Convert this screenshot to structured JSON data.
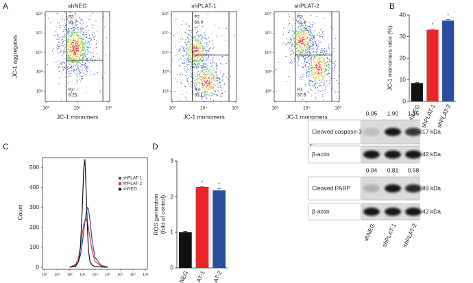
{
  "chart_data": [
    {
      "type": "flow",
      "panel": "A",
      "title": "shNEG",
      "xlabel": "JC-1 monomers",
      "ylabel": "JC-1 aggregates",
      "xscale": "log",
      "yscale": "log",
      "xlim": [
        90,
        1200000
      ],
      "ylim": [
        30,
        1300000
      ],
      "xticks": [
        {
          "value": 100,
          "label": "10²"
        },
        {
          "value": 10000,
          "label": "10⁴"
        },
        {
          "value": 1000000,
          "label": "10⁶"
        }
      ],
      "yticks": [
        {
          "value": 100,
          "label": "10²"
        },
        {
          "value": 1000,
          "label": "10³"
        },
        {
          "value": 10000,
          "label": "10⁴"
        },
        {
          "value": 100000,
          "label": "10⁵"
        },
        {
          "value": 1000000,
          "label": "10⁶"
        }
      ],
      "gates": {
        "x": [
          2000,
          440000
        ],
        "y": 4000
      },
      "regions": [
        {
          "name": "P2",
          "value": 91.7
        },
        {
          "name": "P3",
          "value": 8.25
        }
      ]
    },
    {
      "type": "flow",
      "title": "shPLAT-1",
      "xlabel": "JC-1 monomers",
      "xscale": "log",
      "yscale": "log",
      "xlim": [
        90,
        1200000
      ],
      "ylim": [
        30,
        1300000
      ],
      "xticks": [
        {
          "value": 100,
          "label": "10²"
        },
        {
          "value": 10000,
          "label": "10⁴"
        },
        {
          "value": 1000000,
          "label": "10⁶"
        }
      ],
      "yticks": [
        {
          "value": 100,
          "label": "10²"
        },
        {
          "value": 1000,
          "label": "10³"
        },
        {
          "value": 10000,
          "label": "10⁴"
        },
        {
          "value": 100000,
          "label": "10⁵"
        },
        {
          "value": 1000000,
          "label": "10⁶"
        }
      ],
      "gates": {
        "x": [
          1900,
          400000
        ],
        "y": 7600
      },
      "regions": [
        {
          "name": "P2",
          "value": 66.9
        },
        {
          "name": "P3",
          "value": 33.1
        }
      ]
    },
    {
      "type": "flow",
      "title": "shPLAT-2",
      "xlabel": "JC-1 monomers",
      "xscale": "log",
      "yscale": "log",
      "xlim": [
        90,
        1200000
      ],
      "ylim": [
        30,
        1300000
      ],
      "xticks": [
        {
          "value": 100,
          "label": "10²"
        },
        {
          "value": 10000,
          "label": "10⁴"
        },
        {
          "value": 1000000,
          "label": "10⁶"
        }
      ],
      "yticks": [
        {
          "value": 100,
          "label": "10²"
        },
        {
          "value": 1000,
          "label": "10³"
        },
        {
          "value": 10000,
          "label": "10⁴"
        },
        {
          "value": 100000,
          "label": "10⁵"
        },
        {
          "value": 1000000,
          "label": "10⁶"
        }
      ],
      "gates": {
        "x": [
          1900,
          400000
        ],
        "y": 7600
      },
      "regions": [
        {
          "name": "P2",
          "value": 62.3
        },
        {
          "name": "P3",
          "value": 37.6
        }
      ]
    },
    {
      "type": "bar",
      "panel": "B",
      "ylabel": "JC-1 monomers ratio (%)",
      "categories": [
        "shNEG",
        "shPLAT-1",
        "shPLAT-2"
      ],
      "values": [
        8.5,
        33.2,
        37.5
      ],
      "errors": [
        0.3,
        0.4,
        0.4
      ],
      "colors": [
        "#111111",
        "#e8262a",
        "#2a4fa0"
      ],
      "significance": [
        null,
        "*",
        "*"
      ],
      "ylim": [
        0,
        40
      ],
      "yticks": [
        0,
        10,
        20,
        30,
        40
      ]
    },
    {
      "type": "line",
      "panel": "C",
      "ylabel": "Count",
      "xscale": "log",
      "x": [
        100,
        300,
        500,
        700,
        1000,
        1300,
        1600,
        2000,
        2500,
        3000,
        4000,
        6000,
        10000,
        30000,
        100000
      ],
      "series": [
        {
          "name": "shPLAT-1",
          "color": "#2e4a9e",
          "values": [
            0,
            10,
            30,
            60,
            120,
            180,
            230,
            270,
            300,
            295,
            240,
            130,
            50,
            10,
            0
          ]
        },
        {
          "name": "shPLAT-2",
          "color": "#e23a3a",
          "values": [
            0,
            15,
            50,
            100,
            170,
            215,
            235,
            240,
            225,
            200,
            150,
            80,
            30,
            6,
            0
          ]
        },
        {
          "name": "shNEG",
          "color": "#111111",
          "values": [
            0,
            5,
            30,
            100,
            300,
            500,
            540,
            380,
            200,
            90,
            30,
            10,
            3,
            1,
            0
          ]
        }
      ],
      "xlim": [
        0.7,
        140000000
      ],
      "ylim": [
        0,
        550
      ],
      "yticks": [
        0,
        100,
        200,
        300,
        400,
        500
      ],
      "xticks": [
        {
          "value": 1,
          "label": "10⁰"
        },
        {
          "value": 10,
          "label": "10¹"
        },
        {
          "value": 100,
          "label": "10²"
        },
        {
          "value": 1000,
          "label": "10³"
        },
        {
          "value": 10000,
          "label": "10⁴"
        },
        {
          "value": 100000,
          "label": "10⁵"
        },
        {
          "value": 1000000,
          "label": "10⁶"
        },
        {
          "value": 10000000,
          "label": "10⁷"
        },
        {
          "value": 100000000,
          "label": "10⁸"
        }
      ],
      "legend": "upper right"
    },
    {
      "type": "bar",
      "panel": "D",
      "ylabel": [
        "ROS generation",
        "(fold of control)"
      ],
      "categories": [
        "shNEG",
        "shPLAT-1",
        "shPLAT-2"
      ],
      "values": [
        1.0,
        2.27,
        2.18
      ],
      "errors": [
        0.03,
        0.01,
        0.05
      ],
      "colors": [
        "#111111",
        "#e8262a",
        "#2a4fa0"
      ],
      "significance": [
        null,
        "*",
        "*"
      ],
      "ylim": [
        0,
        3
      ],
      "yticks": [
        0,
        1,
        2,
        3
      ]
    }
  ],
  "western_blot": {
    "panel": "E",
    "lanes": [
      "shNEG",
      "shPLAT-1",
      "shPLAT-2"
    ],
    "blots": [
      {
        "quant": [
          "0.05",
          "1.90",
          "1.15"
        ],
        "label": "Cleaved caspase-3",
        "size": "17 kDa"
      },
      {
        "label": "β-actin",
        "size": "42 kDa"
      },
      {
        "quant": [
          "0.04",
          "0.81",
          "0.58"
        ],
        "label": "Cleaved PARP",
        "size": "89 kDa"
      },
      {
        "label": "β-actin",
        "size": "42 kDa"
      }
    ]
  }
}
